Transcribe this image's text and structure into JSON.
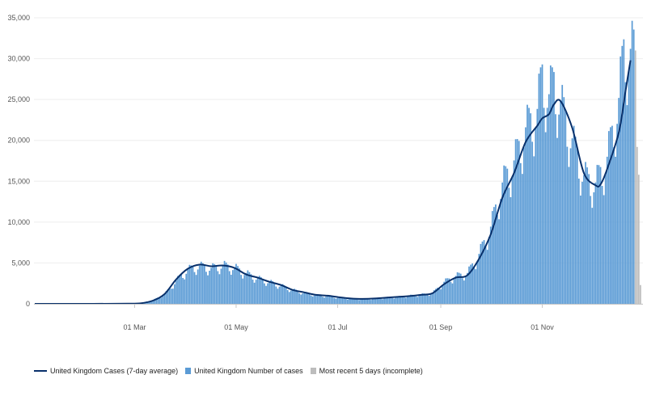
{
  "chart_data": {
    "type": "bar",
    "title": "",
    "xlabel": "",
    "ylabel": "",
    "ylim": [
      0,
      35000
    ],
    "y_ticks": [
      0,
      5000,
      10000,
      15000,
      20000,
      25000,
      30000,
      35000
    ],
    "y_tick_labels": [
      "0",
      "5,000",
      "10,000",
      "15,000",
      "20,000",
      "25,000",
      "30,000",
      "35,000"
    ],
    "x_range": [
      "2020-01-01",
      "2020-12-31"
    ],
    "x_ticks": [
      "2020-03-01",
      "2020-05-01",
      "2020-07-01",
      "2020-09-01",
      "2020-11-01"
    ],
    "x_tick_labels": [
      "01 Mar",
      "01 May",
      "01 Jul",
      "01 Sep",
      "01 Nov"
    ],
    "grid": "horizontal",
    "legend_position": "bottom-left",
    "colors": {
      "average_line": "#08306b",
      "cases_bar": "#5b9bd5",
      "incomplete_bar": "#bdbdbd",
      "grid": "#eeeeee",
      "axis": "#c8c8c8"
    },
    "series": [
      {
        "name": "United Kingdom Cases (7-day average)",
        "kind": "line",
        "points": [
          [
            "2020-01-01",
            0
          ],
          [
            "2020-02-01",
            0
          ],
          [
            "2020-02-26",
            20
          ],
          [
            "2020-03-05",
            80
          ],
          [
            "2020-03-12",
            400
          ],
          [
            "2020-03-19",
            1200
          ],
          [
            "2020-03-26",
            3000
          ],
          [
            "2020-04-02",
            4300
          ],
          [
            "2020-04-09",
            4800
          ],
          [
            "2020-04-16",
            4600
          ],
          [
            "2020-04-23",
            4700
          ],
          [
            "2020-04-30",
            4400
          ],
          [
            "2020-05-07",
            3600
          ],
          [
            "2020-05-14",
            3200
          ],
          [
            "2020-05-21",
            2700
          ],
          [
            "2020-05-28",
            2300
          ],
          [
            "2020-06-04",
            1700
          ],
          [
            "2020-06-11",
            1400
          ],
          [
            "2020-06-18",
            1100
          ],
          [
            "2020-06-25",
            1000
          ],
          [
            "2020-07-02",
            800
          ],
          [
            "2020-07-09",
            650
          ],
          [
            "2020-07-16",
            600
          ],
          [
            "2020-07-23",
            650
          ],
          [
            "2020-07-30",
            750
          ],
          [
            "2020-08-06",
            850
          ],
          [
            "2020-08-13",
            950
          ],
          [
            "2020-08-20",
            1100
          ],
          [
            "2020-08-27",
            1300
          ],
          [
            "2020-09-03",
            2400
          ],
          [
            "2020-09-10",
            3200
          ],
          [
            "2020-09-17",
            3500
          ],
          [
            "2020-09-24",
            5500
          ],
          [
            "2020-10-01",
            8500
          ],
          [
            "2020-10-08",
            13000
          ],
          [
            "2020-10-15",
            16000
          ],
          [
            "2020-10-22",
            19800
          ],
          [
            "2020-10-29",
            21800
          ],
          [
            "2020-11-01",
            22700
          ],
          [
            "2020-11-05",
            23200
          ],
          [
            "2020-11-08",
            24400
          ],
          [
            "2020-11-12",
            24800
          ],
          [
            "2020-11-19",
            21500
          ],
          [
            "2020-11-26",
            16000
          ],
          [
            "2020-12-03",
            14500
          ],
          [
            "2020-12-06",
            14600
          ],
          [
            "2020-12-10",
            16500
          ],
          [
            "2020-12-17",
            21000
          ],
          [
            "2020-12-21",
            26000
          ],
          [
            "2020-12-24",
            29800
          ]
        ]
      },
      {
        "name": "United Kingdom Number of cases",
        "kind": "bar",
        "peaks": [
          [
            "2020-01-01",
            0
          ],
          [
            "2020-02-25",
            10
          ],
          [
            "2020-03-05",
            120
          ],
          [
            "2020-03-12",
            500
          ],
          [
            "2020-03-19",
            1300
          ],
          [
            "2020-03-26",
            3200
          ],
          [
            "2020-04-02",
            4700
          ],
          [
            "2020-04-09",
            5200
          ],
          [
            "2020-04-16",
            4900
          ],
          [
            "2020-04-23",
            5300
          ],
          [
            "2020-04-30",
            5000
          ],
          [
            "2020-05-07",
            4200
          ],
          [
            "2020-05-14",
            3500
          ],
          [
            "2020-05-21",
            3000
          ],
          [
            "2020-05-28",
            2500
          ],
          [
            "2020-06-04",
            1900
          ],
          [
            "2020-06-11",
            1500
          ],
          [
            "2020-06-18",
            1200
          ],
          [
            "2020-06-25",
            1050
          ],
          [
            "2020-07-02",
            850
          ],
          [
            "2020-07-09",
            700
          ],
          [
            "2020-07-16",
            650
          ],
          [
            "2020-07-23",
            700
          ],
          [
            "2020-07-30",
            850
          ],
          [
            "2020-08-06",
            950
          ],
          [
            "2020-08-13",
            1100
          ],
          [
            "2020-08-20",
            1250
          ],
          [
            "2020-08-27",
            1450
          ],
          [
            "2020-09-03",
            3000
          ],
          [
            "2020-09-10",
            3800
          ],
          [
            "2020-09-17",
            4200
          ],
          [
            "2020-09-24",
            6800
          ],
          [
            "2020-10-01",
            10500
          ],
          [
            "2020-10-08",
            16500
          ],
          [
            "2020-10-15",
            19500
          ],
          [
            "2020-10-22",
            24000
          ],
          [
            "2020-10-29",
            26500
          ],
          [
            "2020-11-01",
            31500
          ],
          [
            "2020-11-05",
            28500
          ],
          [
            "2020-11-08",
            30500
          ],
          [
            "2020-11-12",
            27500
          ],
          [
            "2020-11-19",
            22500
          ],
          [
            "2020-11-26",
            17500
          ],
          [
            "2020-12-03",
            16500
          ],
          [
            "2020-12-10",
            20000
          ],
          [
            "2020-12-17",
            28000
          ],
          [
            "2020-12-20",
            34800
          ],
          [
            "2020-12-26",
            34600
          ]
        ]
      },
      {
        "name": "Most recent 5 days (incomplete)",
        "kind": "bar",
        "points": [
          [
            "2020-12-27",
            31000
          ],
          [
            "2020-12-28",
            19200
          ],
          [
            "2020-12-29",
            15800
          ],
          [
            "2020-12-30",
            2300
          ],
          [
            "2020-12-31",
            0
          ]
        ]
      }
    ]
  }
}
